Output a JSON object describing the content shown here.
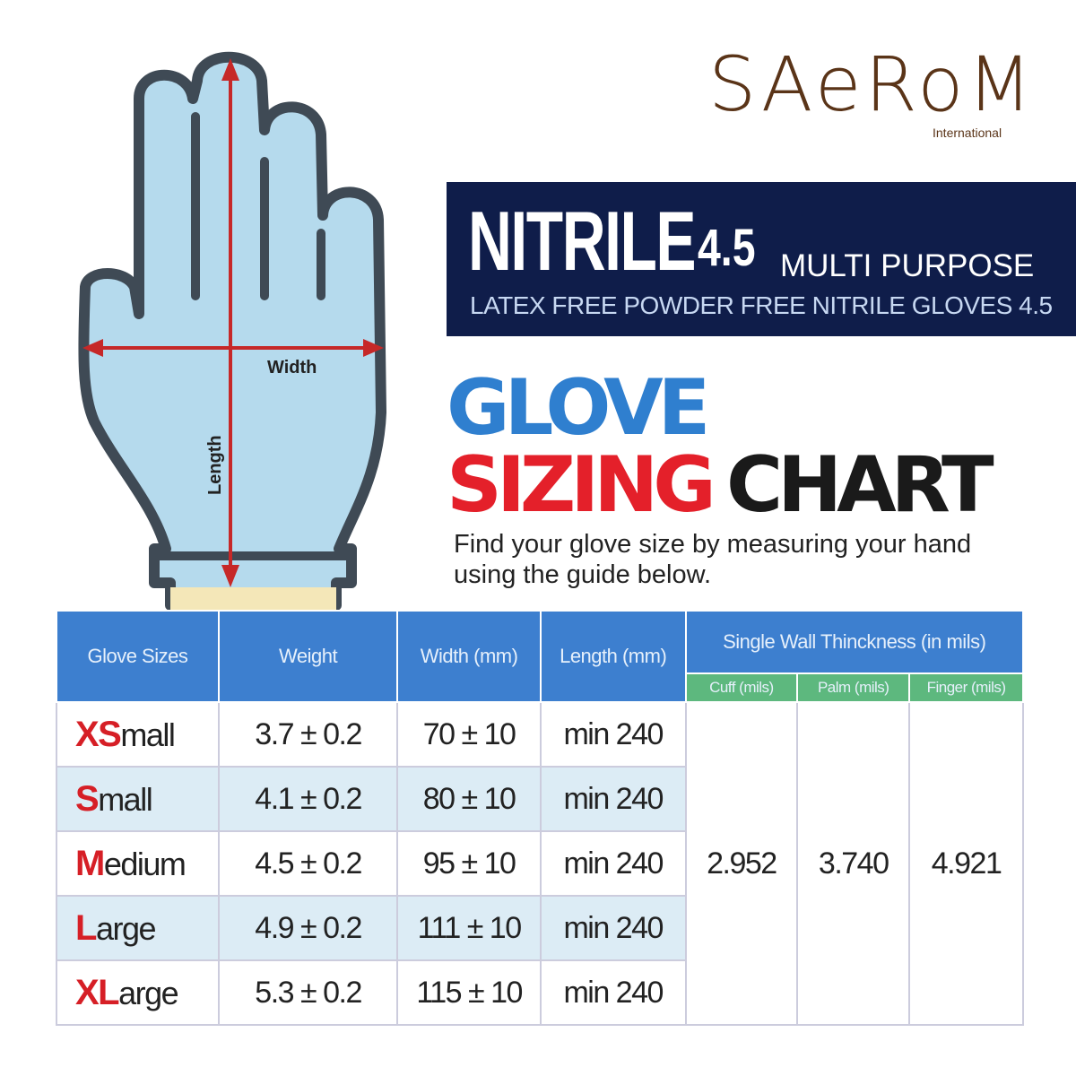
{
  "brand": {
    "name": "SAeRoM",
    "subtitle": "International",
    "color": "#5a3418"
  },
  "banner": {
    "title": "NITRILE",
    "version": "4.5",
    "tag": "MULTI PURPOSE",
    "subtitle": "LATEX FREE POWDER FREE NITRILE GLOVES 4.5"
  },
  "heading": {
    "line1": "GLOVE",
    "line2a": "SIZING",
    "line2b": "CHART"
  },
  "guide": "Find your glove size by measuring your hand using the guide below.",
  "diagram": {
    "width_label": "Width",
    "length_label": "Length"
  },
  "table": {
    "headers": {
      "size": "Glove Sizes",
      "weight": "Weight",
      "width": "Width (mm)",
      "length": "Length (mm)",
      "thickness": "Single Wall Thinckness (in mils)",
      "cuff": "Cuff (mils)",
      "palm": "Palm (mils)",
      "finger": "Finger (mils)"
    },
    "rows": [
      {
        "prefix": "XS",
        "rest": "mall",
        "weight": "3.7 ± 0.2",
        "width": "70 ± 10",
        "length": "min 240"
      },
      {
        "prefix": "S",
        "rest": "mall",
        "weight": "4.1 ± 0.2",
        "width": "80 ± 10",
        "length": "min 240"
      },
      {
        "prefix": "M",
        "rest": "edium",
        "weight": "4.5 ± 0.2",
        "width": "95 ± 10",
        "length": "min 240"
      },
      {
        "prefix": "L",
        "rest": "arge",
        "weight": "4.9 ± 0.2",
        "width": "111 ± 10",
        "length": "min 240"
      },
      {
        "prefix": "XL",
        "rest": "arge",
        "weight": "5.3 ± 0.2",
        "width": "115 ± 10",
        "length": "min 240"
      }
    ],
    "thickness": {
      "cuff": "2.952",
      "palm": "3.740",
      "finger": "4.921"
    }
  }
}
